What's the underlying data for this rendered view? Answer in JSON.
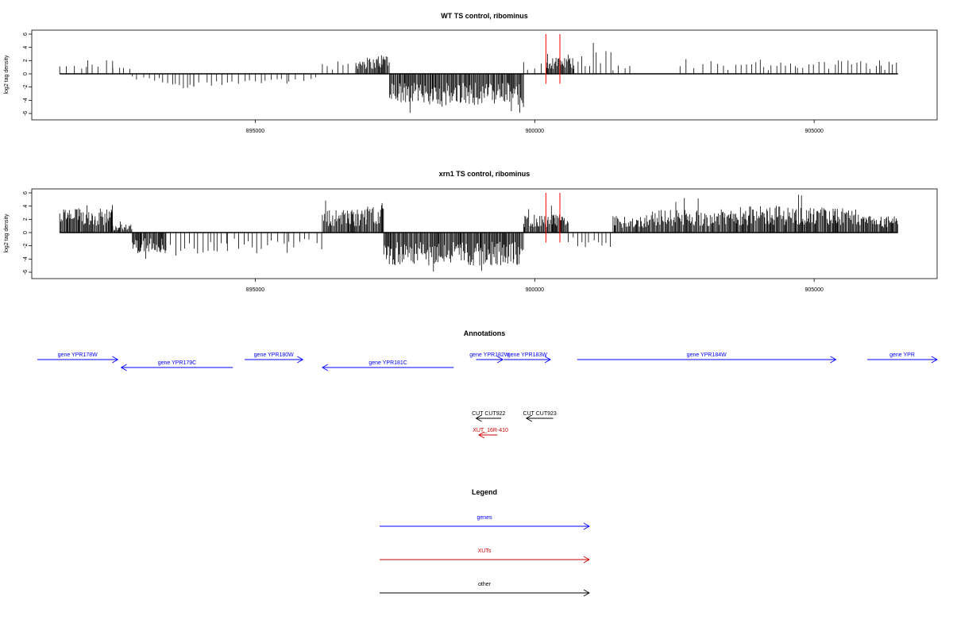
{
  "chart_data": [
    {
      "type": "bar",
      "title": "WT TS control, ribominus",
      "ylabel": "log2 tag density",
      "ylim": [
        -6,
        6
      ],
      "yticks": [
        -6,
        -4,
        -2,
        0,
        2,
        4,
        6
      ],
      "xlim": [
        891000,
        907200
      ],
      "xticks": [
        895000,
        900000,
        905000
      ],
      "grid": false,
      "color": "#000000",
      "marker_color": "#ff0000",
      "markers_x": [
        900200,
        900450
      ],
      "track_start": 891500,
      "track_end": 906500,
      "segments": [
        {
          "start": 891500,
          "end": 891620,
          "level": 1.8
        },
        {
          "start": 891620,
          "end": 892000,
          "level": 1.2
        },
        {
          "start": 892000,
          "end": 892450,
          "level": 1.8
        },
        {
          "start": 892450,
          "end": 892800,
          "level": 1.2
        },
        {
          "start": 892800,
          "end": 893200,
          "level": -0.9
        },
        {
          "start": 893200,
          "end": 893900,
          "level": -1.8
        },
        {
          "start": 893900,
          "end": 894500,
          "level": -1.5
        },
        {
          "start": 894500,
          "end": 895600,
          "level": -1.2
        },
        {
          "start": 895600,
          "end": 896200,
          "level": -1.1
        },
        {
          "start": 896200,
          "end": 896800,
          "level": 1.5
        },
        {
          "start": 896800,
          "end": 897200,
          "level": 2.0
        },
        {
          "start": 897200,
          "end": 897400,
          "level": 2.4
        },
        {
          "start": 897400,
          "end": 899800,
          "level": -3.8
        },
        {
          "start": 899800,
          "end": 900200,
          "level": 1.6
        },
        {
          "start": 900200,
          "end": 900700,
          "level": 2.0
        },
        {
          "start": 900700,
          "end": 901400,
          "level": 2.8
        },
        {
          "start": 901400,
          "end": 901800,
          "level": 1.4
        },
        {
          "start": 901800,
          "end": 902600,
          "level": 0.0
        },
        {
          "start": 902600,
          "end": 903600,
          "level": 1.6
        },
        {
          "start": 903600,
          "end": 904700,
          "level": 1.5
        },
        {
          "start": 904700,
          "end": 906200,
          "level": 1.7
        },
        {
          "start": 906200,
          "end": 906500,
          "level": 1.5
        }
      ],
      "sparse_segments": [
        0,
        1,
        2,
        3,
        4,
        5,
        6,
        7,
        8,
        9,
        13,
        15,
        16,
        17,
        18,
        19,
        20,
        21
      ]
    },
    {
      "type": "bar",
      "title": "xrn1 TS control, ribominus",
      "ylabel": "log2 tag density",
      "ylim": [
        -6,
        6
      ],
      "yticks": [
        -6,
        -4,
        -2,
        0,
        2,
        4,
        6
      ],
      "xlim": [
        891000,
        907200
      ],
      "xticks": [
        895000,
        900000,
        905000
      ],
      "grid": false,
      "color": "#000000",
      "marker_color": "#ff0000",
      "markers_x": [
        900200,
        900450
      ],
      "track_start": 891500,
      "track_end": 906500,
      "segments": [
        {
          "start": 891500,
          "end": 892450,
          "level": 3.0
        },
        {
          "start": 892450,
          "end": 892800,
          "level": 1.0
        },
        {
          "start": 892800,
          "end": 893400,
          "level": -2.5
        },
        {
          "start": 893400,
          "end": 894500,
          "level": -2.8
        },
        {
          "start": 894500,
          "end": 895600,
          "level": -2.6
        },
        {
          "start": 895600,
          "end": 896200,
          "level": -2.2
        },
        {
          "start": 896200,
          "end": 897000,
          "level": 2.8
        },
        {
          "start": 897000,
          "end": 897300,
          "level": 3.6
        },
        {
          "start": 897300,
          "end": 899800,
          "level": -4.0
        },
        {
          "start": 899800,
          "end": 900600,
          "level": 2.2
        },
        {
          "start": 900600,
          "end": 901400,
          "level": -1.8
        },
        {
          "start": 901400,
          "end": 902000,
          "level": 2.0
        },
        {
          "start": 902000,
          "end": 903500,
          "level": 2.8
        },
        {
          "start": 903500,
          "end": 904800,
          "level": 3.2
        },
        {
          "start": 904800,
          "end": 905800,
          "level": 3.0
        },
        {
          "start": 905800,
          "end": 906500,
          "level": 2.0
        }
      ],
      "sparse_segments": [
        3,
        4,
        5,
        10
      ]
    }
  ],
  "annotations": {
    "title": "Annotations",
    "genes": [
      {
        "label": "gene YPR178W",
        "start": 891100,
        "end": 892540,
        "strand": "+",
        "row": 0
      },
      {
        "label": "gene YPR179C",
        "start": 892600,
        "end": 894600,
        "strand": "-",
        "row": 1
      },
      {
        "label": "gene YPR180W",
        "start": 894810,
        "end": 895850,
        "strand": "+",
        "row": 0
      },
      {
        "label": "gene YPR181C",
        "start": 896200,
        "end": 898550,
        "strand": "-",
        "row": 1
      },
      {
        "label": "gene YPR182W",
        "start": 898950,
        "end": 899430,
        "strand": "+",
        "row": 0
      },
      {
        "label": "gene YPR183W",
        "start": 899450,
        "end": 900280,
        "strand": "+",
        "row": 0
      },
      {
        "label": "gene YPR184W",
        "start": 900760,
        "end": 905390,
        "strand": "+",
        "row": 0
      },
      {
        "label": "gene YPR",
        "start": 905950,
        "end": 907200,
        "strand": "+",
        "row": 0
      }
    ],
    "others": [
      {
        "label": "CUT CUT922",
        "start": 898950,
        "end": 899400,
        "strand": "-"
      },
      {
        "label": "CUT CUT923",
        "start": 899850,
        "end": 900330,
        "strand": "-"
      }
    ],
    "xuts": [
      {
        "label": "XUT_16R-410",
        "start": 899000,
        "end": 899330,
        "strand": "-"
      }
    ]
  },
  "legend": {
    "title": "Legend",
    "items": [
      {
        "label": "genes",
        "color": "#0000ff"
      },
      {
        "label": "XUTs",
        "color": "#cc0000"
      },
      {
        "label": "other",
        "color": "#000000"
      }
    ]
  },
  "colors": {
    "gene": "#0000ff",
    "xut": "#cc0000",
    "other": "#000000"
  }
}
